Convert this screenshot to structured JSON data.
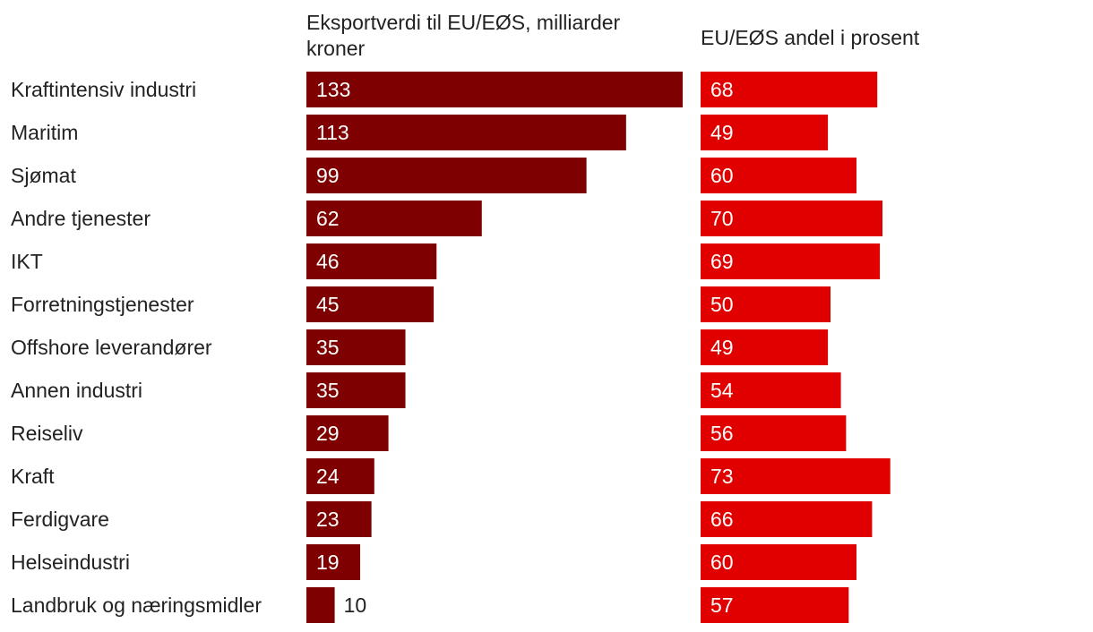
{
  "chart_data": {
    "type": "bar",
    "orientation": "horizontal",
    "categories": [
      "Kraftintensiv industri",
      "Maritim",
      "Sjømat",
      "Andre tjenester",
      "IKT",
      "Forretningstjenester",
      "Offshore leverandører",
      "Annen industri",
      "Reiseliv",
      "Kraft",
      "Ferdigvare",
      "Helseindustri",
      "Landbruk og næringsmidler"
    ],
    "series": [
      {
        "name": "Eksportverdi til EU/EØS, milliarder kroner",
        "values": [
          133,
          113,
          99,
          62,
          46,
          45,
          35,
          35,
          29,
          24,
          23,
          19,
          10
        ],
        "color": "#7f0000",
        "xlim": [
          0,
          133
        ]
      },
      {
        "name": "EU/EØS andel i prosent",
        "values": [
          68,
          49,
          60,
          70,
          69,
          50,
          49,
          54,
          56,
          73,
          66,
          60,
          57
        ],
        "color": "#e00000",
        "xlim": [
          0,
          100
        ]
      }
    ],
    "value_label_color": "#ffffff",
    "category_label_color": "#222222"
  }
}
